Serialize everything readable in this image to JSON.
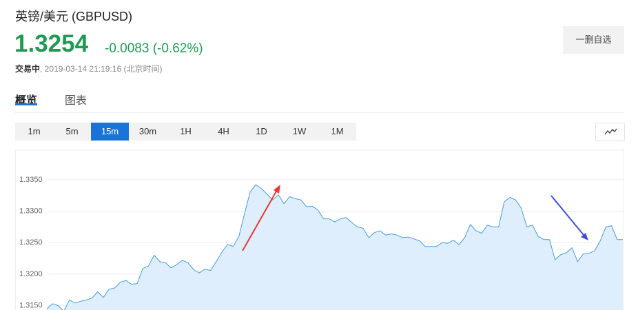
{
  "header": {
    "title": "英镑/美元  (GBPUSD)",
    "price": "1.3254",
    "change": "-0.0083 (-0.62%)",
    "status": "交易中",
    "time": ", 2019-03-14 21:19:16 (北京时间)",
    "button": "一删自选"
  },
  "tabs": [
    "概览",
    "图表"
  ],
  "active_tab": 0,
  "timeframes": [
    "1m",
    "5m",
    "15m",
    "30m",
    "1H",
    "4H",
    "1D",
    "1W",
    "1M"
  ],
  "active_timeframe": 2,
  "chart_data": {
    "type": "line",
    "color": "#4a9ad8",
    "fill": "#deeefc",
    "grid": true,
    "ylim": [
      1.3143,
      1.3397
    ],
    "yticks": [
      {
        "value": 1.315,
        "label": "1.3150"
      },
      {
        "value": 1.32,
        "label": "1.3200"
      },
      {
        "value": 1.325,
        "label": "1.3250"
      },
      {
        "value": 1.33,
        "label": "1.3300"
      },
      {
        "value": 1.335,
        "label": "1.3350"
      }
    ],
    "values": [
      1.3145,
      1.3153,
      1.315,
      1.3141,
      1.3159,
      1.3154,
      1.3157,
      1.3159,
      1.3162,
      1.3172,
      1.3163,
      1.3176,
      1.3178,
      1.3187,
      1.319,
      1.3184,
      1.3185,
      1.3209,
      1.3213,
      1.323,
      1.322,
      1.3218,
      1.321,
      1.3215,
      1.3222,
      1.3218,
      1.3207,
      1.3202,
      1.3208,
      1.3206,
      1.322,
      1.3235,
      1.3247,
      1.3244,
      1.326,
      1.3296,
      1.3331,
      1.3342,
      1.3336,
      1.3327,
      1.3318,
      1.3326,
      1.3312,
      1.3323,
      1.332,
      1.3318,
      1.3307,
      1.3308,
      1.3302,
      1.3288,
      1.3288,
      1.3283,
      1.3288,
      1.329,
      1.3282,
      1.3275,
      1.3273,
      1.3258,
      1.3266,
      1.3269,
      1.3262,
      1.3264,
      1.3262,
      1.3258,
      1.3259,
      1.3256,
      1.3253,
      1.3244,
      1.3244,
      1.3244,
      1.325,
      1.3249,
      1.3254,
      1.3247,
      1.3258,
      1.3279,
      1.3269,
      1.3265,
      1.3278,
      1.3275,
      1.3275,
      1.3315,
      1.3322,
      1.3318,
      1.3305,
      1.3275,
      1.3278,
      1.326,
      1.3255,
      1.3255,
      1.3223,
      1.3231,
      1.3234,
      1.3242,
      1.322,
      1.3232,
      1.3233,
      1.3237,
      1.3253,
      1.3275,
      1.3277,
      1.3255,
      1.3255
    ]
  }
}
